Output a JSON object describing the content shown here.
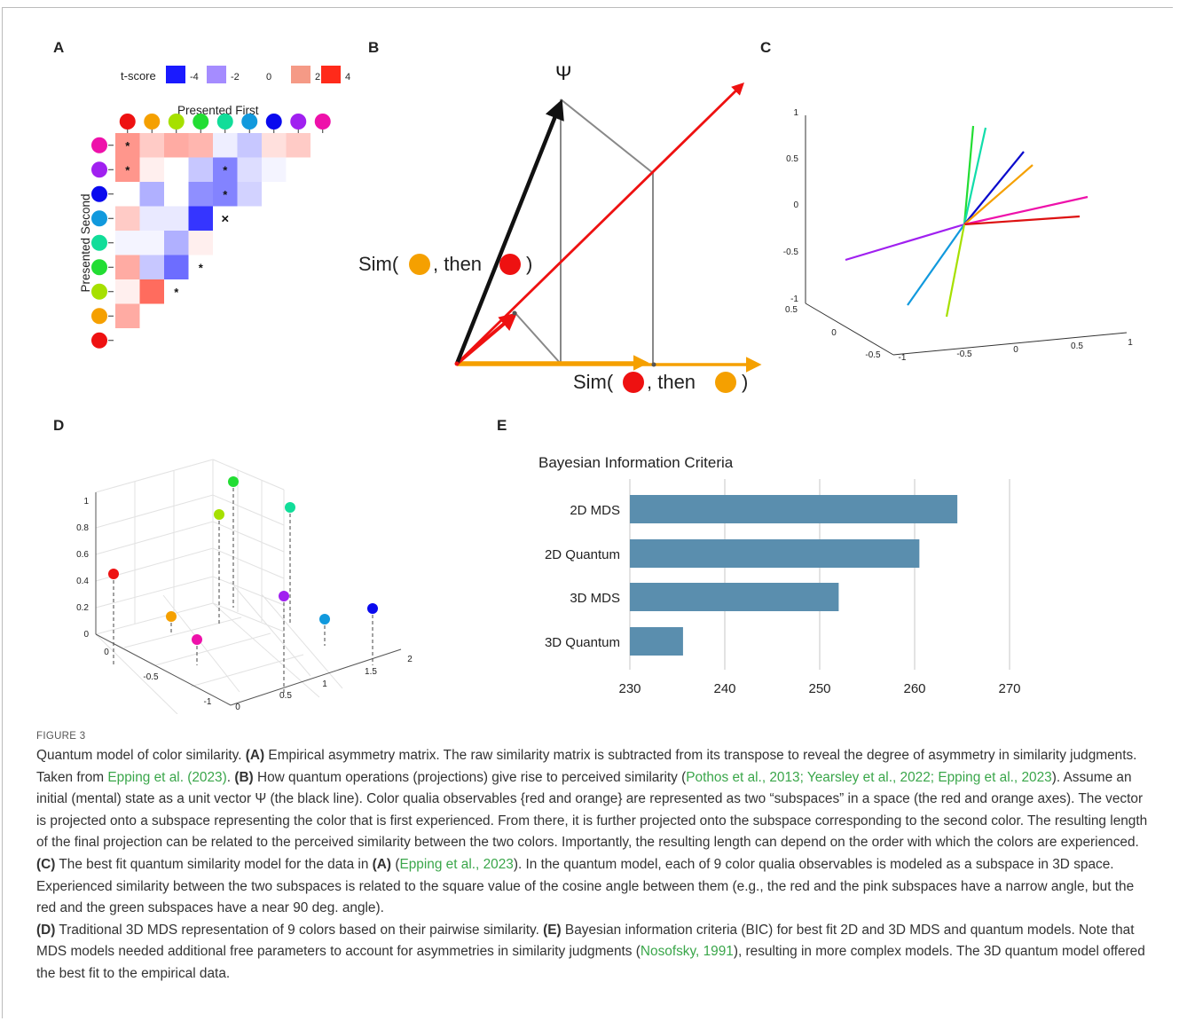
{
  "panels": {
    "a": "A",
    "b": "B",
    "c": "C",
    "d": "D",
    "e": "E"
  },
  "panelA": {
    "legend_title": "t-score",
    "legend_items": [
      {
        "label": "-4",
        "color": "#1a1aff"
      },
      {
        "label": "-2",
        "color": "#a58cff"
      },
      {
        "label": "0",
        "color": "#ffffff"
      },
      {
        "label": "2",
        "color": "#f59a86"
      },
      {
        "label": "4",
        "color": "#ff2a1a"
      }
    ],
    "top_label": "Presented First",
    "left_label": "Presented Second",
    "top_colors": [
      "#ee1111",
      "#f5a000",
      "#a6e000",
      "#22dd33",
      "#11dd99",
      "#1199dd",
      "#0a0aee",
      "#a020f0",
      "#ee11aa"
    ],
    "left_colors": [
      "#ee11aa",
      "#a020f0",
      "#0a0aee",
      "#1199dd",
      "#11dd99",
      "#22dd33",
      "#a6e000",
      "#f5a000",
      "#ee1111"
    ],
    "cells": [
      [
        2.0,
        1.0,
        1.6,
        1.4,
        -0.3,
        -1.0,
        0.6,
        1.0
      ],
      [
        2.0,
        0.3,
        0.0,
        -1.0,
        -2.2,
        -0.6,
        -0.2
      ],
      [
        0.0,
        -1.4,
        0.0,
        -2.0,
        -2.2,
        -0.8
      ],
      [
        1.0,
        -0.4,
        -0.4,
        -3.6
      ],
      [
        -0.2,
        -0.2,
        -1.4,
        0.3
      ],
      [
        1.6,
        -1.0,
        -2.6
      ],
      [
        0.3,
        2.8
      ],
      [
        1.6
      ]
    ],
    "markers": [
      {
        "row": 0,
        "col": 0,
        "symbol": "*"
      },
      {
        "row": 1,
        "col": 0,
        "symbol": "*"
      },
      {
        "row": 1,
        "col": 4,
        "symbol": "*"
      },
      {
        "row": 2,
        "col": 4,
        "symbol": "*"
      },
      {
        "row": 3,
        "col": 4,
        "symbol": "×"
      },
      {
        "row": 5,
        "col": 3,
        "symbol": "*"
      },
      {
        "row": 6,
        "col": 2,
        "symbol": "*"
      }
    ]
  },
  "panelB": {
    "psi": "Ψ",
    "sim1_prefix": "Sim(",
    "sim1_mid": ", then",
    "sim1_suffix": ")",
    "sim2_prefix": "Sim(",
    "sim2_mid": ", then",
    "sim2_suffix": ")"
  },
  "panelC": {
    "z_ticks": [
      "1",
      "0.5",
      "0",
      "-0.5",
      "-1"
    ],
    "y_ticks": [
      "0.5",
      "0",
      "-0.5"
    ],
    "x_ticks": [
      "-1",
      "-0.5",
      "0",
      "0.5",
      "1"
    ],
    "lines": [
      {
        "color": "#22dd33"
      },
      {
        "color": "#11ddaa"
      },
      {
        "color": "#0a0acc"
      },
      {
        "color": "#f5a000"
      },
      {
        "color": "#ee11aa"
      },
      {
        "color": "#dd1111"
      },
      {
        "color": "#a020f0"
      },
      {
        "color": "#1199dd"
      },
      {
        "color": "#a6e000"
      }
    ]
  },
  "panelD": {
    "z_ticks": [
      "1",
      "0.8",
      "0.6",
      "0.4",
      "0.2",
      "0"
    ],
    "y_ticks": [
      "0",
      "-0.5",
      "-1"
    ],
    "x_ticks": [
      "0",
      "0.5",
      "1",
      "1.5",
      "2"
    ],
    "points": [
      {
        "color": "#22dd33"
      },
      {
        "color": "#a6e000"
      },
      {
        "color": "#11dd99"
      },
      {
        "color": "#ee1111"
      },
      {
        "color": "#f5a000"
      },
      {
        "color": "#ee11aa"
      },
      {
        "color": "#a020f0"
      },
      {
        "color": "#1199dd"
      },
      {
        "color": "#0a0aee"
      }
    ]
  },
  "chart_data": {
    "type": "bar",
    "orientation": "horizontal",
    "title": "Bayesian Information Criteria",
    "categories": [
      "2D MDS",
      "2D Quantum",
      "3D MDS",
      "3D Quantum"
    ],
    "values": [
      264.5,
      260.5,
      252,
      235.6
    ],
    "xlim": [
      230,
      274
    ],
    "x_ticks": [
      "230",
      "240",
      "250",
      "260",
      "270"
    ],
    "bar_color": "#5a8eae",
    "grid": true
  },
  "caption": {
    "figure_label": "FIGURE 3",
    "t01": "Quantum model of color similarity. ",
    "t02": "(A)",
    "t03": " Empirical asymmetry matrix. The raw similarity matrix is subtracted from its transpose to reveal the degree of asymmetry in similarity judgments. Taken from ",
    "t04": "Epping et al. (2023)",
    "t05": ". ",
    "t06": "(B)",
    "t07": " How quantum operations (projections) give rise to perceived similarity (",
    "t08": "Pothos et al., 2013; Yearsley et al., 2022; Epping et al., 2023",
    "t09": "). Assume an initial (mental) state as a unit vector Ψ (the black line). Color qualia observables {red and orange} are represented as two “subspaces” in a space (the red and orange axes). The vector is projected onto a subspace representing the color that is first experienced. From there, it is further projected onto the subspace corresponding to the second color. The resulting length of the final projection can be related to the perceived similarity between the two colors. Importantly, the resulting length can depend on the order with which the colors are experienced. ",
    "t10": "(C)",
    "t11": " The best fit quantum similarity model for the data in ",
    "t12": "(A)",
    "t13": " (",
    "t14": "Epping et al., 2023",
    "t15": "). In the quantum model, each of 9 color qualia observables is modeled as a subspace in 3D space. Experienced similarity between the two subspaces is related to the square value of the cosine angle between them (e.g., the red and the pink subspaces have a narrow angle, but the red and the green subspaces have a near 90  deg. angle).",
    "t16": "(D)",
    "t17": " Traditional 3D MDS representation of 9 colors based on their pairwise similarity. ",
    "t18": "(E)",
    "t19": " Bayesian information criteria (BIC) for best fit 2D and 3D MDS and quantum models. Note that MDS models needed additional free parameters to account for asymmetries in similarity judgments (",
    "t20": "Nosofsky, 1991",
    "t21": "), resulting in more complex models. The 3D quantum model offered the best fit to the empirical data."
  }
}
